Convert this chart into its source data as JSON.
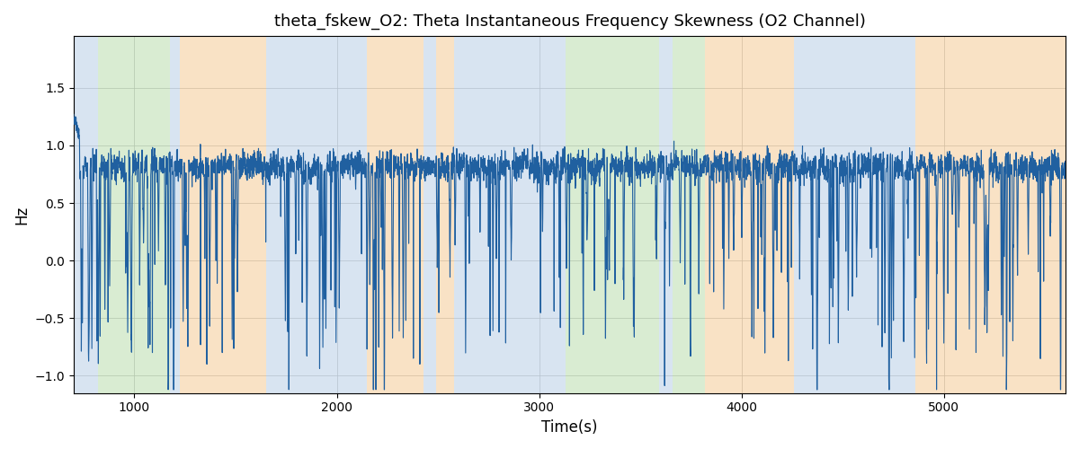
{
  "title": "theta_fskew_O2: Theta Instantaneous Frequency Skewness (O2 Channel)",
  "xlabel": "Time(s)",
  "ylabel": "Hz",
  "xlim": [
    700,
    5600
  ],
  "ylim": [
    -1.15,
    1.95
  ],
  "yticks": [
    -1.0,
    -0.5,
    0.0,
    0.5,
    1.0,
    1.5
  ],
  "xticks": [
    1000,
    2000,
    3000,
    4000,
    5000
  ],
  "line_color": "#2060a0",
  "line_width": 0.8,
  "background_color": "#ffffff",
  "grid_color": "#c0c0c0",
  "regions": [
    {
      "start": 700,
      "end": 820,
      "color": "#aac4e0",
      "alpha": 0.45
    },
    {
      "start": 820,
      "end": 1175,
      "color": "#a0d090",
      "alpha": 0.4
    },
    {
      "start": 1175,
      "end": 1225,
      "color": "#aac4e0",
      "alpha": 0.45
    },
    {
      "start": 1225,
      "end": 1650,
      "color": "#f0b870",
      "alpha": 0.4
    },
    {
      "start": 1650,
      "end": 1850,
      "color": "#aac4e0",
      "alpha": 0.45
    },
    {
      "start": 1850,
      "end": 2150,
      "color": "#aac4e0",
      "alpha": 0.45
    },
    {
      "start": 2150,
      "end": 2430,
      "color": "#f0b870",
      "alpha": 0.4
    },
    {
      "start": 2430,
      "end": 2490,
      "color": "#aac4e0",
      "alpha": 0.45
    },
    {
      "start": 2490,
      "end": 2580,
      "color": "#f0b870",
      "alpha": 0.4
    },
    {
      "start": 2580,
      "end": 3050,
      "color": "#aac4e0",
      "alpha": 0.45
    },
    {
      "start": 3050,
      "end": 3130,
      "color": "#aac4e0",
      "alpha": 0.45
    },
    {
      "start": 3130,
      "end": 3590,
      "color": "#a0d090",
      "alpha": 0.4
    },
    {
      "start": 3590,
      "end": 3660,
      "color": "#aac4e0",
      "alpha": 0.45
    },
    {
      "start": 3660,
      "end": 3820,
      "color": "#a0d090",
      "alpha": 0.4
    },
    {
      "start": 3820,
      "end": 4260,
      "color": "#f0b870",
      "alpha": 0.4
    },
    {
      "start": 4260,
      "end": 4860,
      "color": "#aac4e0",
      "alpha": 0.45
    },
    {
      "start": 4860,
      "end": 5120,
      "color": "#f0b870",
      "alpha": 0.4
    },
    {
      "start": 5120,
      "end": 5600,
      "color": "#f0b870",
      "alpha": 0.4
    }
  ],
  "seed": 12345,
  "n_points": 4900
}
